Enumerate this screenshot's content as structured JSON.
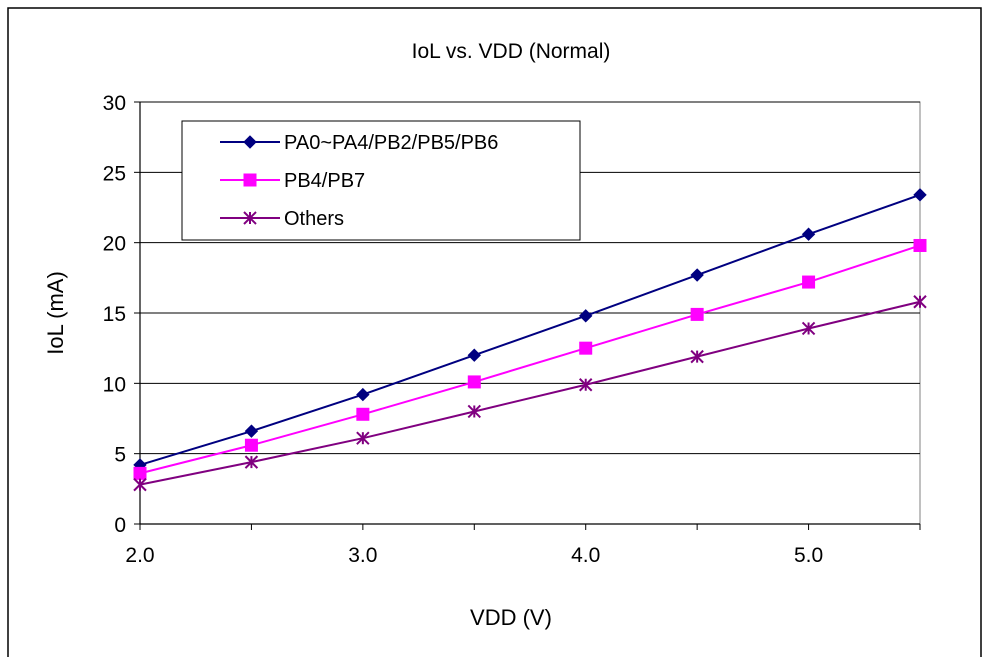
{
  "chart_data": {
    "type": "line",
    "title": "IoL vs. VDD (Normal)",
    "xlabel": "VDD (V)",
    "ylabel": "IoL (mA)",
    "x": [
      2.0,
      2.5,
      3.0,
      3.5,
      4.0,
      4.5,
      5.0,
      5.5
    ],
    "xlim": [
      2.0,
      5.5
    ],
    "ylim": [
      0,
      30
    ],
    "x_ticks": [
      2.0,
      3.0,
      4.0,
      5.0
    ],
    "x_tick_labels": [
      "2.0",
      "3.0",
      "4.0",
      "5.0"
    ],
    "y_ticks": [
      0,
      5,
      10,
      15,
      20,
      25,
      30
    ],
    "y_tick_labels": [
      "0",
      "5",
      "10",
      "15",
      "20",
      "25",
      "30"
    ],
    "grid": "horizontal",
    "legend_position": "top-left",
    "series": [
      {
        "name": "PA0~PA4/PB2/PB5/PB6",
        "color": "#000080",
        "marker": "diamond",
        "values": [
          4.2,
          6.6,
          9.2,
          12.0,
          14.8,
          17.7,
          20.6,
          23.4
        ]
      },
      {
        "name": "PB4/PB7",
        "color": "#ff00ff",
        "marker": "square",
        "values": [
          3.6,
          5.6,
          7.8,
          10.1,
          12.5,
          14.9,
          17.2,
          19.8
        ]
      },
      {
        "name": "Others",
        "color": "#800080",
        "marker": "star",
        "values": [
          2.8,
          4.4,
          6.1,
          8.0,
          9.9,
          11.9,
          13.9,
          15.8
        ]
      }
    ]
  }
}
